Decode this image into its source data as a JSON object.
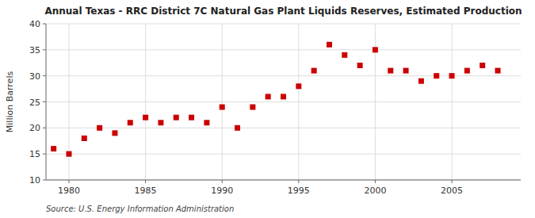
{
  "chart_data": {
    "type": "scatter",
    "title": "Annual Texas - RRC District 7C Natural Gas Plant Liquids Reserves, Estimated Production",
    "y_label": "Million Barrels",
    "source": "Source: U.S. Energy Information Administration",
    "x": [
      1979,
      1980,
      1981,
      1982,
      1983,
      1984,
      1985,
      1986,
      1987,
      1988,
      1989,
      1990,
      1991,
      1992,
      1993,
      1994,
      1995,
      1996,
      1997,
      1998,
      1999,
      2000,
      2001,
      2002,
      2003,
      2004,
      2005,
      2006,
      2007,
      2008
    ],
    "values": [
      16.0,
      15.0,
      18.0,
      20.0,
      19.0,
      21.0,
      22.0,
      21.0,
      22.0,
      22.0,
      21.0,
      24.0,
      20.0,
      24.0,
      26.0,
      26.0,
      28.0,
      31.0,
      36.0,
      34.0,
      32.0,
      35.0,
      31.0,
      31.0,
      29.0,
      30.0,
      30.0,
      31.0,
      32.0,
      31.0
    ],
    "color": "#cc0000",
    "marker": "square",
    "xlim": [
      1978.5,
      2009.5
    ],
    "ylim": [
      10,
      40
    ],
    "xticks": [
      1980,
      1985,
      1990,
      1995,
      2000,
      2005
    ],
    "yticks": [
      10,
      15,
      20,
      25,
      30,
      35,
      40
    ],
    "grid": true
  }
}
